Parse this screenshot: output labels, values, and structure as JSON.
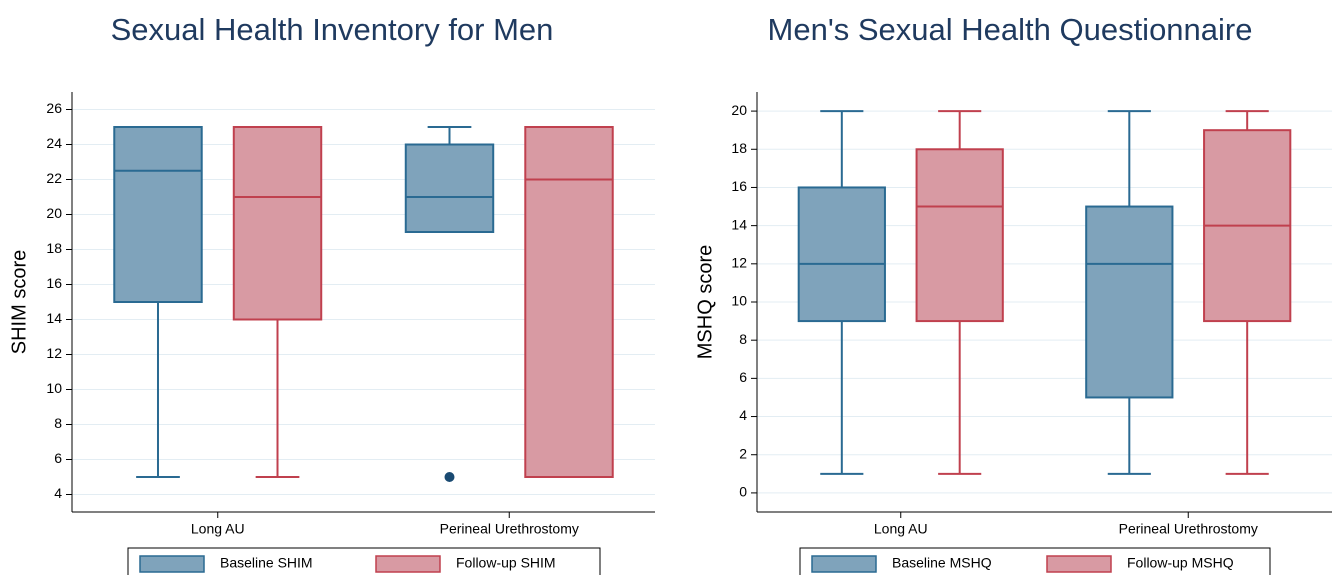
{
  "chart_data": [
    {
      "type": "box",
      "title": "Sexual Health Inventory for Men",
      "ylabel": "SHIM score",
      "categories": [
        "Long AU",
        "Perineal Urethrostomy"
      ],
      "ylim": [
        3,
        27
      ],
      "yticks": [
        4,
        6,
        8,
        10,
        12,
        14,
        16,
        18,
        20,
        22,
        24,
        26
      ],
      "grid": true,
      "series": [
        {
          "name": "Baseline SHIM",
          "color": "#7fa3bb",
          "edgecolor": "#2a6a92",
          "min": [
            5,
            19
          ],
          "q1": [
            15,
            19
          ],
          "median": [
            22.5,
            21
          ],
          "q3": [
            25,
            24
          ],
          "max": [
            25,
            25
          ],
          "outliers": [
            [],
            [
              5
            ]
          ]
        },
        {
          "name": "Follow-up SHIM",
          "color": "#d89aa3",
          "edgecolor": "#c0404e",
          "min": [
            5,
            5
          ],
          "q1": [
            14,
            5
          ],
          "median": [
            21,
            22
          ],
          "q3": [
            25,
            25
          ],
          "max": [
            25,
            25
          ],
          "outliers": [
            [],
            []
          ]
        }
      ]
    },
    {
      "type": "box",
      "title": "Men's Sexual Health Questionnaire",
      "ylabel": "MSHQ score",
      "categories": [
        "Long AU",
        "Perineal Urethrostomy"
      ],
      "ylim": [
        -1,
        21
      ],
      "yticks": [
        0,
        2,
        4,
        6,
        8,
        10,
        12,
        14,
        16,
        18,
        20
      ],
      "grid": true,
      "series": [
        {
          "name": "Baseline MSHQ",
          "color": "#7fa3bb",
          "edgecolor": "#2a6a92",
          "min": [
            1,
            1
          ],
          "q1": [
            9,
            5
          ],
          "median": [
            12,
            12
          ],
          "q3": [
            16,
            15
          ],
          "max": [
            20,
            20
          ],
          "outliers": [
            [],
            []
          ]
        },
        {
          "name": "Follow-up MSHQ",
          "color": "#d89aa3",
          "edgecolor": "#c0404e",
          "min": [
            1,
            1
          ],
          "q1": [
            9,
            9
          ],
          "median": [
            15,
            14
          ],
          "q3": [
            18,
            19
          ],
          "max": [
            20,
            20
          ],
          "outliers": [
            [],
            []
          ]
        }
      ]
    }
  ]
}
